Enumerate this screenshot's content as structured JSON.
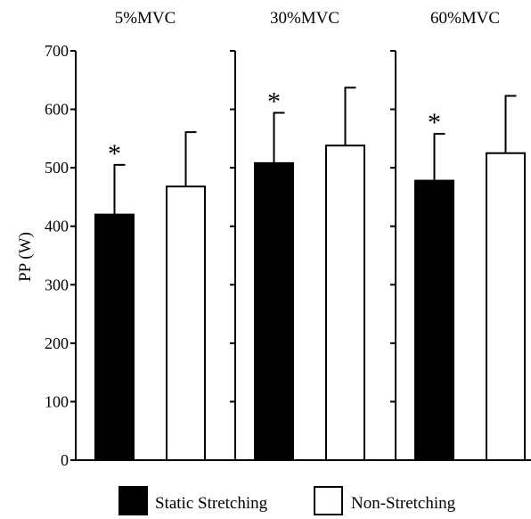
{
  "chart_data": {
    "type": "bar",
    "ylabel": "PP (W)",
    "ylim": [
      0,
      700
    ],
    "yticks": [
      0,
      100,
      200,
      300,
      400,
      500,
      600,
      700
    ],
    "significance_marker": "*",
    "series": [
      {
        "name": "Static Stretching",
        "fill": "#000000"
      },
      {
        "name": "Non-Stretching",
        "fill": "#ffffff"
      }
    ],
    "panels": [
      {
        "title": "5%MVC",
        "bars": [
          {
            "series": "Static Stretching",
            "value": 420,
            "error": 85,
            "significant": true
          },
          {
            "series": "Non-Stretching",
            "value": 468,
            "error": 93,
            "significant": false
          }
        ]
      },
      {
        "title": "30%MVC",
        "bars": [
          {
            "series": "Static Stretching",
            "value": 508,
            "error": 86,
            "significant": true
          },
          {
            "series": "Non-Stretching",
            "value": 538,
            "error": 99,
            "significant": false
          }
        ]
      },
      {
        "title": "60%MVC",
        "bars": [
          {
            "series": "Static Stretching",
            "value": 478,
            "error": 80,
            "significant": true
          },
          {
            "series": "Non-Stretching",
            "value": 525,
            "error": 98,
            "significant": false
          }
        ]
      }
    ],
    "legend_position": "bottom-center",
    "grid": false
  }
}
